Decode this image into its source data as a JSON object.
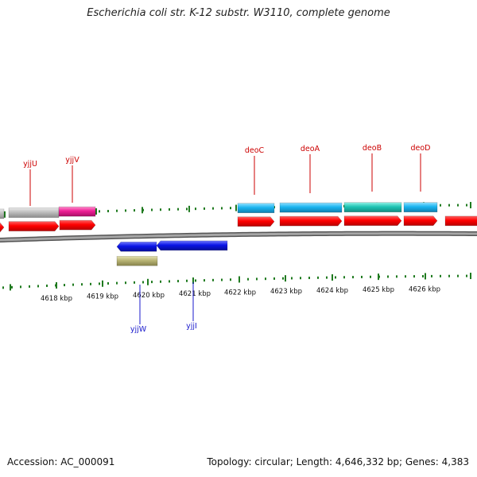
{
  "title": "Escherichia coli str. K-12 substr. W3110, complete genome",
  "footer": {
    "accession": "Accession: AC_000091",
    "stats": "Topology: circular; Length: 4,646,332 bp; Genes: 4,383"
  },
  "colors": {
    "backbone": "#8a8a8a",
    "ticks": "#1f7a1f",
    "plus_gene_label": "#cc0000",
    "minus_gene_label": "#1a1acc",
    "cds": "#ff0000",
    "gene_cyan": "#1ab4ef",
    "gene_teal": "#1fc4b4",
    "gene_gray": "#bdbdbd",
    "gene_magenta": "#ee1f96",
    "gene_blue": "#0a14e6",
    "gene_olive": "#b8b474"
  },
  "scale": {
    "unit": "kbp",
    "ticks": [
      "4618 kbp",
      "4619 kbp",
      "4620 kbp",
      "4621 kbp",
      "4622 kbp",
      "4623 kbp",
      "4624 kbp",
      "4625 kbp",
      "4626 kbp"
    ]
  },
  "genes_plus": [
    "yjjU",
    "yjjV",
    "deoC",
    "deoA",
    "deoB",
    "deoD"
  ],
  "genes_minus": [
    "yjjW",
    "yjjI"
  ]
}
